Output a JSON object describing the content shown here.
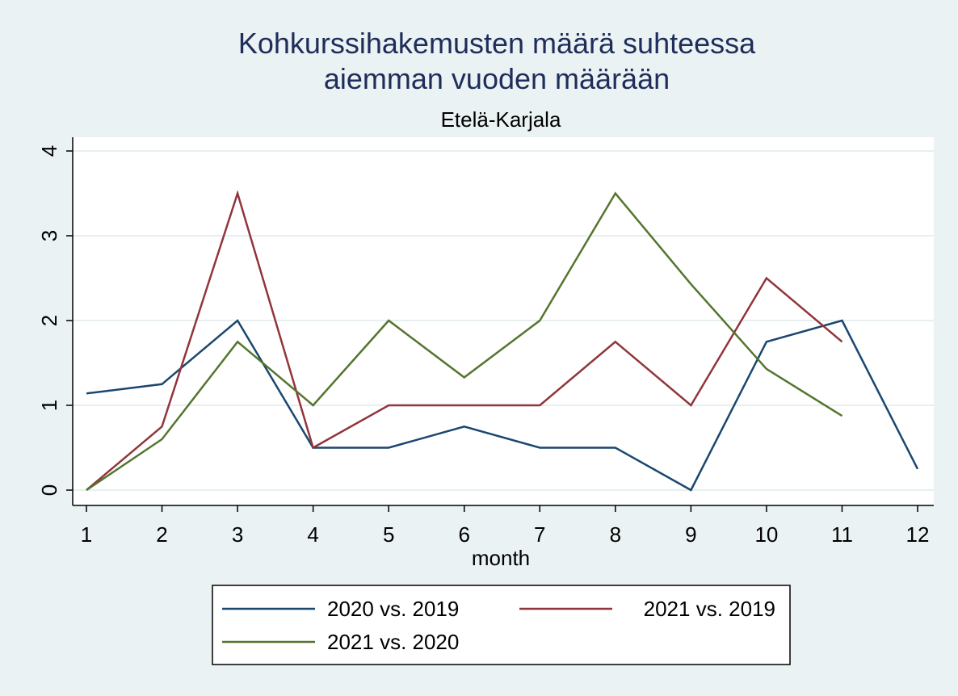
{
  "chart_data": {
    "type": "line",
    "title_lines": [
      "Kohkurssihakemusten määrä suhteessa",
      "aiemman vuoden määrään"
    ],
    "subtitle": "Etelä-Karjala",
    "xlabel": "month",
    "ylabel": "",
    "x": [
      1,
      2,
      3,
      4,
      5,
      6,
      7,
      8,
      9,
      10,
      11,
      12
    ],
    "xlim": [
      1,
      12
    ],
    "ylim": [
      0,
      4
    ],
    "y_ticks": [
      0,
      1,
      2,
      3,
      4
    ],
    "x_ticks": [
      1,
      2,
      3,
      4,
      5,
      6,
      7,
      8,
      9,
      10,
      11,
      12
    ],
    "grid": true,
    "legend_position": "bottom",
    "series": [
      {
        "name": "2020 vs. 2019",
        "color": "#1a476f",
        "values": [
          1.14,
          1.25,
          2.0,
          0.5,
          0.5,
          0.75,
          0.5,
          0.5,
          0.0,
          1.75,
          2.0,
          0.25
        ]
      },
      {
        "name": "2021 vs. 2019",
        "color": "#90353b",
        "values": [
          0.0,
          0.75,
          3.5,
          0.5,
          1.0,
          1.0,
          1.0,
          1.75,
          1.0,
          2.5,
          1.75,
          null
        ]
      },
      {
        "name": "2021 vs. 2020",
        "color": "#55752f",
        "values": [
          0.0,
          0.6,
          1.75,
          1.0,
          2.0,
          1.33,
          2.0,
          3.5,
          2.43,
          1.43,
          0.875,
          null
        ]
      }
    ]
  }
}
